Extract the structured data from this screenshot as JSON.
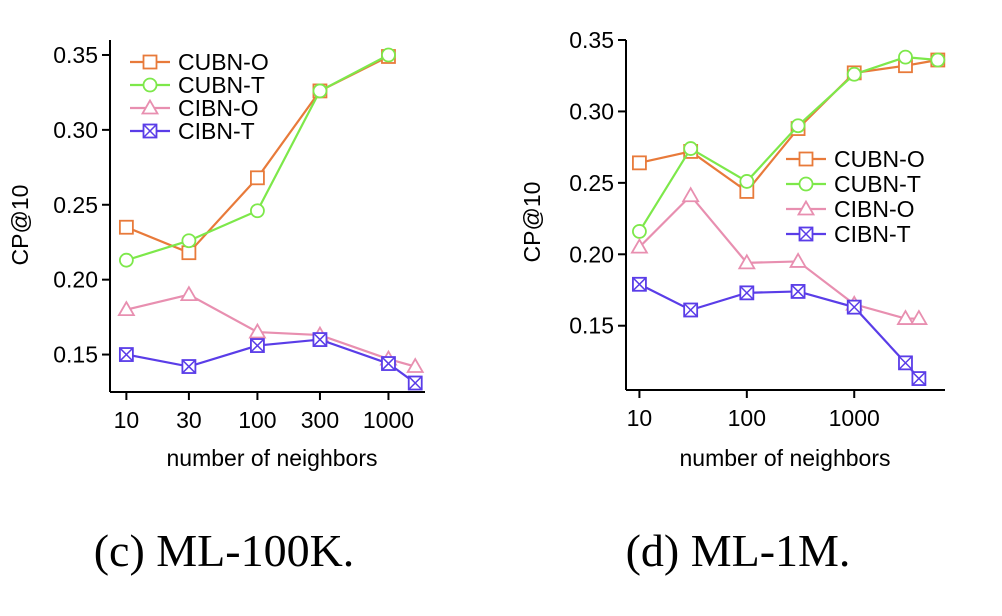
{
  "chart_data": [
    {
      "type": "line",
      "caption": "(c) ML-100K.",
      "xlabel": "number of neighbors",
      "ylabel": "CP@10",
      "x_scale": "log",
      "x_ticks": [
        10,
        30,
        100,
        300,
        1000
      ],
      "x_tick_labels": [
        "10",
        "30",
        "100",
        "300",
        "1000"
      ],
      "y_ticks": [
        0.15,
        0.2,
        0.25,
        0.3,
        0.35
      ],
      "y_tick_labels": [
        "0.15",
        "0.20",
        "0.25",
        "0.30",
        "0.35"
      ],
      "ylim": [
        0.125,
        0.36
      ],
      "legend_position": "top-left",
      "series": [
        {
          "name": "CUBN-O",
          "color": "#e87a3a",
          "marker": "square",
          "x": [
            10,
            30,
            100,
            300,
            1000
          ],
          "y": [
            0.235,
            0.218,
            0.268,
            0.326,
            0.349
          ]
        },
        {
          "name": "CUBN-T",
          "color": "#7de84a",
          "marker": "circle",
          "x": [
            10,
            30,
            100,
            300,
            1000
          ],
          "y": [
            0.213,
            0.226,
            0.246,
            0.326,
            0.35
          ]
        },
        {
          "name": "CIBN-O",
          "color": "#e88fb0",
          "marker": "triangle",
          "x": [
            10,
            30,
            100,
            300,
            1000,
            1600
          ],
          "y": [
            0.18,
            0.19,
            0.165,
            0.163,
            0.147,
            0.142
          ]
        },
        {
          "name": "CIBN-T",
          "color": "#5a3de8",
          "marker": "boxx",
          "x": [
            10,
            30,
            100,
            300,
            1000,
            1600
          ],
          "y": [
            0.15,
            0.142,
            0.156,
            0.16,
            0.144,
            0.131
          ]
        }
      ]
    },
    {
      "type": "line",
      "caption": "(d) ML-1M.",
      "xlabel": "number of neighbors",
      "ylabel": "CP@10",
      "x_scale": "log",
      "x_ticks": [
        10,
        100,
        1000
      ],
      "x_tick_labels": [
        "10",
        "100",
        "1000"
      ],
      "y_ticks": [
        0.15,
        0.2,
        0.25,
        0.3,
        0.35
      ],
      "y_tick_labels": [
        "0.15",
        "0.20",
        "0.25",
        "0.30",
        "0.35"
      ],
      "ylim": [
        0.105,
        0.35
      ],
      "legend_position": "right",
      "series": [
        {
          "name": "CUBN-O",
          "color": "#e87a3a",
          "marker": "square",
          "x": [
            10,
            30,
            100,
            300,
            1000,
            3000,
            6000
          ],
          "y": [
            0.264,
            0.272,
            0.244,
            0.288,
            0.327,
            0.332,
            0.336
          ]
        },
        {
          "name": "CUBN-T",
          "color": "#7de84a",
          "marker": "circle",
          "x": [
            10,
            30,
            100,
            300,
            1000,
            3000,
            6000
          ],
          "y": [
            0.216,
            0.274,
            0.251,
            0.29,
            0.326,
            0.338,
            0.336
          ]
        },
        {
          "name": "CIBN-O",
          "color": "#e88fb0",
          "marker": "triangle",
          "x": [
            10,
            30,
            100,
            300,
            1000,
            3000,
            4000
          ],
          "y": [
            0.205,
            0.241,
            0.194,
            0.195,
            0.165,
            0.155,
            0.155
          ]
        },
        {
          "name": "CIBN-T",
          "color": "#5a3de8",
          "marker": "boxx",
          "x": [
            10,
            30,
            100,
            300,
            1000,
            3000,
            4000
          ],
          "y": [
            0.179,
            0.161,
            0.173,
            0.174,
            0.163,
            0.124,
            0.113
          ]
        }
      ]
    }
  ]
}
